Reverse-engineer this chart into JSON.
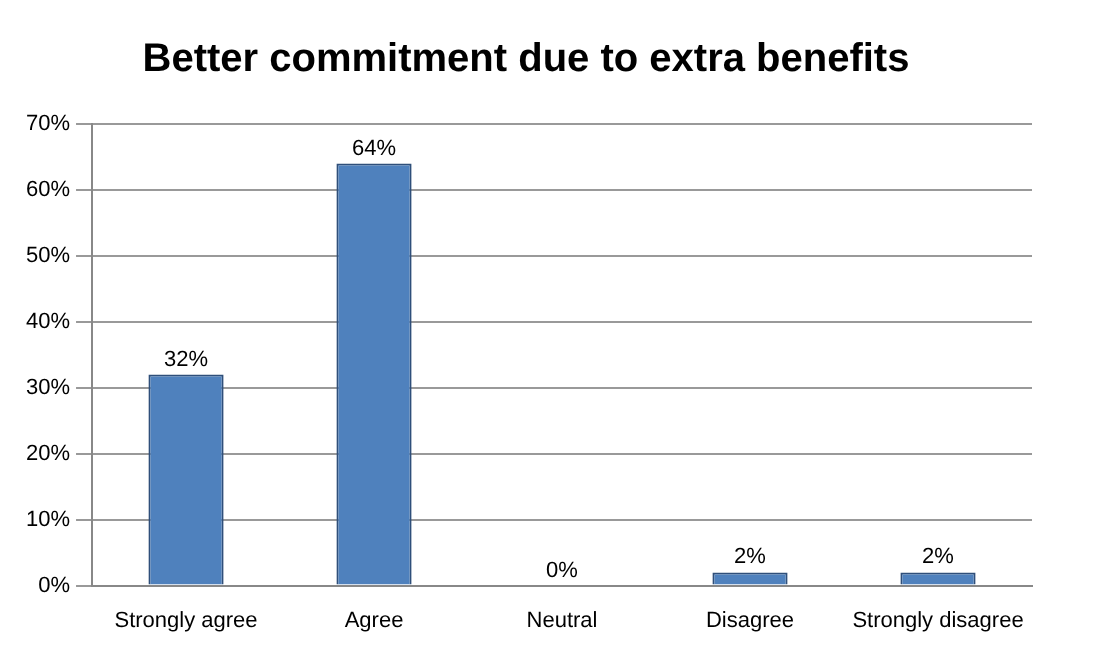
{
  "chart_data": {
    "type": "bar",
    "title": "Better commitment due to extra benefits",
    "categories": [
      "Strongly agree",
      "Agree",
      "Neutral",
      "Disagree",
      "Strongly disagree"
    ],
    "values": [
      32,
      64,
      0,
      2,
      2
    ],
    "value_labels": [
      "32%",
      "64%",
      "0%",
      "2%",
      "2%"
    ],
    "color": "#4f81bd",
    "ylim": [
      0,
      70
    ],
    "yticks": [
      {
        "value": 0,
        "label": "0%"
      },
      {
        "value": 10,
        "label": "10%"
      },
      {
        "value": 20,
        "label": "20%"
      },
      {
        "value": 30,
        "label": "30%"
      },
      {
        "value": 40,
        "label": "40%"
      },
      {
        "value": 50,
        "label": "50%"
      },
      {
        "value": 60,
        "label": "60%"
      },
      {
        "value": 70,
        "label": "70%"
      }
    ],
    "grid": "y"
  }
}
